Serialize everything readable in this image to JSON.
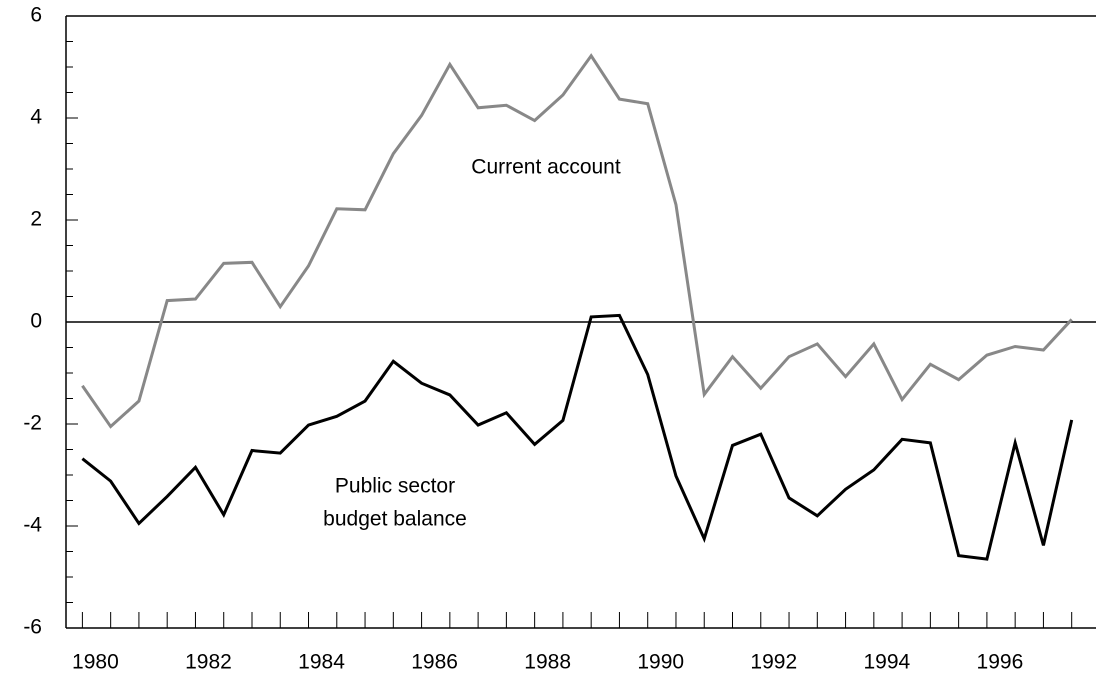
{
  "chart_data": {
    "type": "line",
    "x": [
      1980,
      1980.5,
      1981,
      1981.5,
      1982,
      1982.5,
      1983,
      1983.5,
      1984,
      1984.5,
      1985,
      1985.5,
      1986,
      1986.5,
      1987,
      1987.5,
      1988,
      1988.5,
      1989,
      1989.5,
      1990,
      1990.5,
      1991,
      1991.5,
      1992,
      1992.5,
      1993,
      1993.5,
      1994,
      1994.5,
      1995,
      1995.5,
      1996,
      1996.5,
      1997,
      1997.5
    ],
    "series": [
      {
        "name": "Current account",
        "color": "#888888",
        "values": [
          -1.25,
          -2.05,
          -1.55,
          0.42,
          0.45,
          1.15,
          1.17,
          0.3,
          1.1,
          2.22,
          2.2,
          3.3,
          4.05,
          5.05,
          4.2,
          4.25,
          3.95,
          4.45,
          5.22,
          4.37,
          4.28,
          2.3,
          -1.42,
          -0.68,
          -1.3,
          -0.68,
          -0.43,
          -1.07,
          -0.43,
          -1.52,
          -0.83,
          -1.13,
          -0.65,
          -0.48,
          -0.55,
          0.05
        ]
      },
      {
        "name": "Public sector budget balance",
        "color": "#000000",
        "values": [
          -2.68,
          -3.12,
          -3.95,
          -3.42,
          -2.85,
          -3.78,
          -2.52,
          -2.57,
          -2.02,
          -1.85,
          -1.55,
          -0.77,
          -1.2,
          -1.43,
          -2.02,
          -1.78,
          -2.4,
          -1.93,
          0.1,
          0.13,
          -1.03,
          -3.02,
          -4.25,
          -2.42,
          -2.2,
          -3.45,
          -3.8,
          -3.28,
          -2.9,
          -2.3,
          -2.37,
          -4.58,
          -4.65,
          -2.37,
          -4.38,
          -1.92
        ]
      }
    ],
    "annotations": [
      "Current account",
      "Public sector",
      "budget balance"
    ],
    "xlim": [
      1979.71,
      1997.93
    ],
    "xticks": [
      1980,
      1982,
      1984,
      1986,
      1988,
      1990,
      1992,
      1994,
      1996
    ],
    "ylim": [
      -6,
      6
    ],
    "yticks": [
      -6,
      -4,
      -2,
      0,
      2,
      4,
      6
    ]
  }
}
